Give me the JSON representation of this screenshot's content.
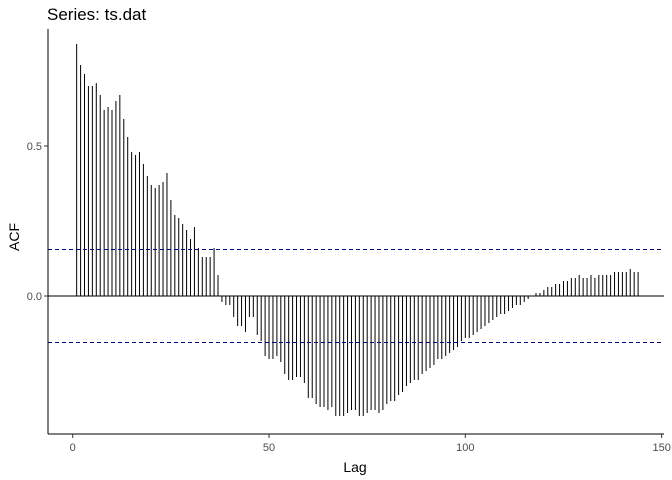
{
  "chart_data": {
    "type": "bar",
    "title": "Series: ts.dat",
    "xlabel": "Lag",
    "ylabel": "ACF",
    "xlim": [
      -6.3,
      150.6
    ],
    "ylim": [
      -0.46,
      0.89
    ],
    "x_ticks": [
      0,
      50,
      100,
      150
    ],
    "y_ticks": [
      0.0,
      0.5
    ],
    "y_tick_labels": [
      "0.0",
      "0.5"
    ],
    "grid": false,
    "legend": "none",
    "confidence_bounds": [
      0.155,
      -0.155
    ],
    "colors": {
      "bars": "#000000",
      "bounds": "#00008b",
      "zero_line": "#000000",
      "axis": "#000000",
      "tick_text": "#4d4d4d"
    },
    "lags": [
      1,
      2,
      3,
      4,
      5,
      6,
      7,
      8,
      9,
      10,
      11,
      12,
      13,
      14,
      15,
      16,
      17,
      18,
      19,
      20,
      21,
      22,
      23,
      24,
      25,
      26,
      27,
      28,
      29,
      30,
      31,
      32,
      33,
      34,
      35,
      36,
      37,
      38,
      39,
      40,
      41,
      42,
      43,
      44,
      45,
      46,
      47,
      48,
      49,
      50,
      51,
      52,
      53,
      54,
      55,
      56,
      57,
      58,
      59,
      60,
      61,
      62,
      63,
      64,
      65,
      66,
      67,
      68,
      69,
      70,
      71,
      72,
      73,
      74,
      75,
      76,
      77,
      78,
      79,
      80,
      81,
      82,
      83,
      84,
      85,
      86,
      87,
      88,
      89,
      90,
      91,
      92,
      93,
      94,
      95,
      96,
      97,
      98,
      99,
      100,
      101,
      102,
      103,
      104,
      105,
      106,
      107,
      108,
      109,
      110,
      111,
      112,
      113,
      114,
      115,
      116,
      117,
      118,
      119,
      120,
      121,
      122,
      123,
      124,
      125,
      126,
      127,
      128,
      129,
      130,
      131,
      132,
      133,
      134,
      135,
      136,
      137,
      138,
      139,
      140,
      141,
      142,
      143,
      144
    ],
    "values": [
      0.84,
      0.77,
      0.74,
      0.7,
      0.7,
      0.71,
      0.67,
      0.62,
      0.63,
      0.62,
      0.65,
      0.67,
      0.59,
      0.53,
      0.48,
      0.47,
      0.48,
      0.44,
      0.4,
      0.37,
      0.36,
      0.37,
      0.38,
      0.41,
      0.32,
      0.27,
      0.26,
      0.24,
      0.22,
      0.19,
      0.23,
      0.16,
      0.13,
      0.13,
      0.13,
      0.16,
      0.07,
      -0.02,
      -0.03,
      -0.03,
      -0.07,
      -0.1,
      -0.1,
      -0.12,
      -0.07,
      -0.07,
      -0.13,
      -0.15,
      -0.2,
      -0.21,
      -0.21,
      -0.2,
      -0.22,
      -0.26,
      -0.28,
      -0.28,
      -0.27,
      -0.27,
      -0.29,
      -0.34,
      -0.34,
      -0.36,
      -0.37,
      -0.37,
      -0.38,
      -0.37,
      -0.4,
      -0.4,
      -0.4,
      -0.39,
      -0.38,
      -0.38,
      -0.4,
      -0.4,
      -0.39,
      -0.38,
      -0.38,
      -0.39,
      -0.38,
      -0.36,
      -0.35,
      -0.35,
      -0.33,
      -0.32,
      -0.3,
      -0.29,
      -0.28,
      -0.28,
      -0.26,
      -0.25,
      -0.24,
      -0.23,
      -0.21,
      -0.21,
      -0.2,
      -0.19,
      -0.18,
      -0.17,
      -0.15,
      -0.14,
      -0.14,
      -0.13,
      -0.12,
      -0.11,
      -0.1,
      -0.09,
      -0.08,
      -0.07,
      -0.06,
      -0.06,
      -0.05,
      -0.04,
      -0.03,
      -0.03,
      -0.02,
      -0.01,
      0.0,
      0.01,
      0.01,
      0.02,
      0.03,
      0.03,
      0.04,
      0.04,
      0.05,
      0.05,
      0.06,
      0.06,
      0.07,
      0.06,
      0.06,
      0.07,
      0.06,
      0.07,
      0.07,
      0.07,
      0.07,
      0.08,
      0.08,
      0.08,
      0.08,
      0.09,
      0.08,
      0.08
    ]
  }
}
